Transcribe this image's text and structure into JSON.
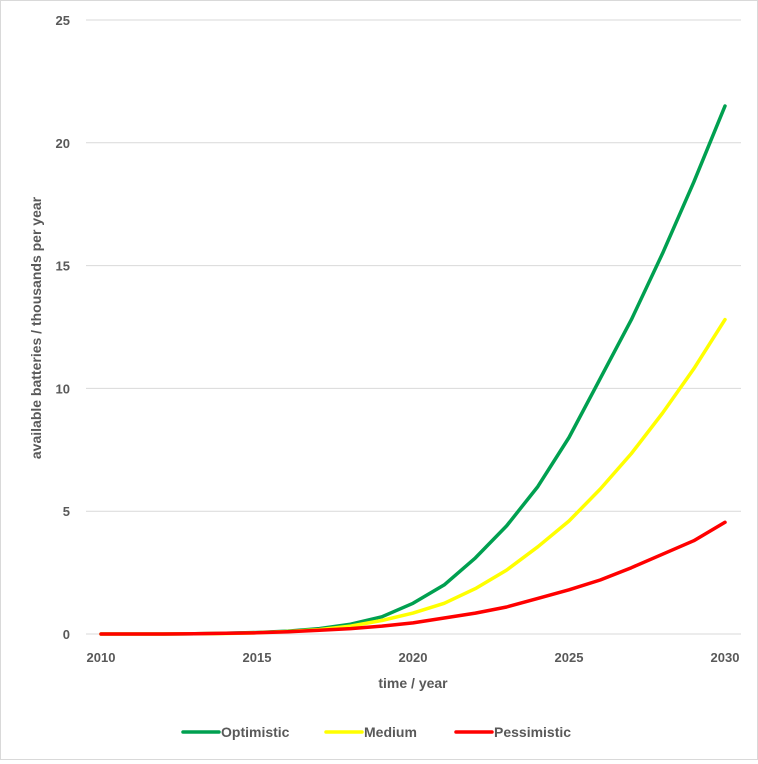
{
  "chart_data": {
    "type": "line",
    "title": "",
    "xlabel": "time / year",
    "ylabel": "available batteries /  thousands per year",
    "xlim": [
      2010,
      2030
    ],
    "ylim": [
      0,
      25
    ],
    "x_ticks": [
      2010,
      2015,
      2020,
      2025,
      2030
    ],
    "y_ticks": [
      0,
      5,
      10,
      15,
      20,
      25
    ],
    "grid": "horizontal",
    "legend_position": "bottom",
    "x": [
      2010,
      2011,
      2012,
      2013,
      2014,
      2015,
      2016,
      2017,
      2018,
      2019,
      2020,
      2021,
      2022,
      2023,
      2024,
      2025,
      2026,
      2027,
      2028,
      2029,
      2030
    ],
    "series": [
      {
        "name": "Optimistic",
        "color": "#00a050",
        "values": [
          0,
          0,
          0,
          0.01,
          0.03,
          0.06,
          0.12,
          0.22,
          0.4,
          0.7,
          1.25,
          2.0,
          3.1,
          4.4,
          6.0,
          8.0,
          10.4,
          12.8,
          15.5,
          18.4,
          21.5
        ]
      },
      {
        "name": "Medium",
        "color": "#ffff00",
        "values": [
          0,
          0,
          0,
          0.01,
          0.02,
          0.05,
          0.1,
          0.18,
          0.32,
          0.55,
          0.85,
          1.25,
          1.85,
          2.6,
          3.55,
          4.6,
          5.9,
          7.35,
          9.0,
          10.8,
          12.8
        ]
      },
      {
        "name": "Pessimistic",
        "color": "#ff0000",
        "values": [
          0,
          0,
          0,
          0.01,
          0.03,
          0.05,
          0.09,
          0.15,
          0.22,
          0.32,
          0.45,
          0.65,
          0.85,
          1.1,
          1.45,
          1.8,
          2.2,
          2.7,
          3.25,
          3.8,
          4.55
        ]
      }
    ]
  }
}
